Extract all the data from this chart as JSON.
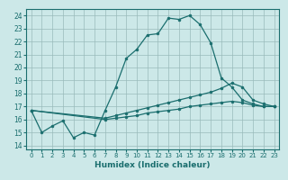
{
  "xlabel": "Humidex (Indice chaleur)",
  "bg_color": "#cce8e8",
  "line_color": "#1a6e6e",
  "grid_color": "#99bbbb",
  "xlim": [
    -0.5,
    23.5
  ],
  "ylim": [
    13.7,
    24.5
  ],
  "xticks": [
    0,
    1,
    2,
    3,
    4,
    5,
    6,
    7,
    8,
    9,
    10,
    11,
    12,
    13,
    14,
    15,
    16,
    17,
    18,
    19,
    20,
    21,
    22,
    23
  ],
  "yticks": [
    14,
    15,
    16,
    17,
    18,
    19,
    20,
    21,
    22,
    23,
    24
  ],
  "line1_x": [
    0,
    1,
    2,
    3,
    4,
    5,
    6,
    7,
    8,
    9,
    10,
    11,
    12,
    13,
    14,
    15,
    16,
    17,
    18,
    19,
    20,
    21,
    22,
    23
  ],
  "line1_y": [
    16.7,
    15.0,
    15.5,
    15.9,
    14.6,
    15.0,
    14.8,
    16.7,
    18.5,
    20.7,
    21.4,
    22.5,
    22.6,
    23.8,
    23.7,
    24.0,
    23.3,
    21.9,
    19.2,
    18.5,
    17.5,
    17.2,
    17.0,
    17.0
  ],
  "line2_x": [
    0,
    7,
    8,
    9,
    10,
    11,
    12,
    13,
    14,
    15,
    16,
    17,
    18,
    19,
    20,
    21,
    22,
    23
  ],
  "line2_y": [
    16.7,
    16.1,
    16.3,
    16.5,
    16.7,
    16.9,
    17.1,
    17.3,
    17.5,
    17.7,
    17.9,
    18.1,
    18.4,
    18.8,
    18.5,
    17.5,
    17.2,
    17.0
  ],
  "line3_x": [
    0,
    7,
    8,
    9,
    10,
    11,
    12,
    13,
    14,
    15,
    16,
    17,
    18,
    19,
    20,
    21,
    22,
    23
  ],
  "line3_y": [
    16.7,
    16.0,
    16.1,
    16.2,
    16.3,
    16.5,
    16.6,
    16.7,
    16.8,
    17.0,
    17.1,
    17.2,
    17.3,
    17.4,
    17.3,
    17.1,
    17.0,
    17.0
  ]
}
